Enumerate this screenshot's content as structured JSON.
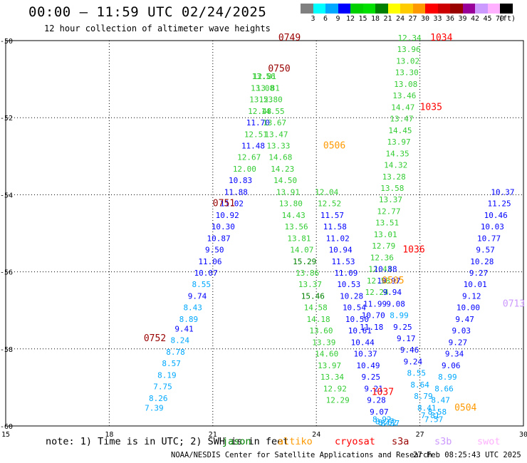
{
  "header": {
    "title": "00:00 — 11:59 UTC 02/24/2025",
    "subtitle": "12 hour collection of altimeter wave heights"
  },
  "colorbar": {
    "labels": [
      "3",
      "6",
      "9",
      "12",
      "15",
      "18",
      "21",
      "24",
      "27",
      "30",
      "33",
      "36",
      "39",
      "42",
      "45",
      "70"
    ],
    "unit": "(ft)",
    "colors": [
      "#808080",
      "#00ffff",
      "#00a8ff",
      "#0000ff",
      "#00d000",
      "#00e000",
      "#008000",
      "#ffff00",
      "#ffcc00",
      "#ff9900",
      "#ff0000",
      "#cc0000",
      "#990000",
      "#990099",
      "#cc99ff",
      "#ffb0ff",
      "#000000"
    ]
  },
  "footer": {
    "note": "note: 1) Time is in UTC; 2) SWH is in feet",
    "satellites": [
      {
        "name": "jason",
        "color": "#008000"
      },
      {
        "name": "altiko",
        "color": "#ff9900"
      },
      {
        "name": "cryosat",
        "color": "#ff0000"
      },
      {
        "name": "s3a",
        "color": "#990000"
      },
      {
        "name": "s3b",
        "color": "#cc99ff"
      },
      {
        "name": "swot",
        "color": "#ffb0ff"
      }
    ],
    "credit": "NOAA/NESDIS Center for Satellite Applications and Research",
    "timestamp": "27 Feb 08:25:43 UTC 2025"
  },
  "chart_data": {
    "type": "scatter",
    "title": "00:00 — 11:59 UTC 02/24/2025",
    "xlim": [
      15,
      30
    ],
    "ylim": [
      -60,
      -50
    ],
    "xticks": [
      "15",
      "18",
      "21",
      "24",
      "27",
      "30"
    ],
    "yticks": [
      "-50",
      "-52",
      "-54",
      "-56",
      "-58",
      "-60"
    ],
    "grid": true,
    "time_labels": [
      {
        "text": "0749",
        "x": 22.9,
        "y": -50.0,
        "color": "#990000"
      },
      {
        "text": "0750",
        "x": 22.6,
        "y": -50.8,
        "color": "#990000"
      },
      {
        "text": "0751",
        "x": 21.0,
        "y": -54.3,
        "color": "#990000"
      },
      {
        "text": "0752",
        "x": 19.0,
        "y": -57.8,
        "color": "#990000"
      },
      {
        "text": "0506",
        "x": 24.2,
        "y": -52.8,
        "color": "#ff9900"
      },
      {
        "text": "0505",
        "x": 25.9,
        "y": -56.3,
        "color": "#ff9900"
      },
      {
        "text": "0504",
        "x": 28.0,
        "y": -59.6,
        "color": "#ff9900"
      },
      {
        "text": "1034",
        "x": 27.3,
        "y": -50.0,
        "color": "#ff0000"
      },
      {
        "text": "1035",
        "x": 27.0,
        "y": -51.8,
        "color": "#ff0000"
      },
      {
        "text": "1036",
        "x": 26.5,
        "y": -55.5,
        "color": "#ff0000"
      },
      {
        "text": "1037",
        "x": 25.6,
        "y": -59.2,
        "color": "#ff0000"
      },
      {
        "text": "0713",
        "x": 29.4,
        "y": -56.9,
        "color": "#cc99ff"
      }
    ],
    "series": [
      {
        "name": "s3a",
        "x": [
          19.3,
          19.42,
          19.55,
          19.67,
          19.8,
          19.92,
          20.05,
          20.17,
          20.3,
          20.42,
          20.55,
          20.67,
          20.8,
          20.92,
          21.05,
          21.17,
          21.3,
          21.42,
          21.55,
          21.67,
          21.8,
          21.92,
          22.05,
          22.17,
          22.25,
          22.31,
          22.36,
          22.4,
          22.44,
          22.47
        ],
        "y": [
          -59.6,
          -59.35,
          -59.05,
          -58.75,
          -58.45,
          -58.15,
          -57.85,
          -57.55,
          -57.3,
          -57.0,
          -56.7,
          -56.4,
          -56.1,
          -55.8,
          -55.5,
          -55.2,
          -54.9,
          -54.6,
          -54.3,
          -54.0,
          -53.7,
          -53.4,
          -53.1,
          -52.8,
          -52.5,
          -52.2,
          -51.9,
          -51.6,
          -51.3,
          -51.0
        ],
        "values": [
          7.39,
          8.26,
          7.75,
          8.19,
          8.57,
          8.78,
          8.24,
          9.41,
          8.89,
          8.43,
          9.74,
          8.55,
          10.07,
          11.06,
          9.5,
          10.87,
          10.3,
          10.92,
          11.02,
          11.88,
          10.83,
          12.0,
          12.67,
          11.48,
          12.51,
          11.7,
          12.48,
          13.53,
          13.08,
          13.56
        ]
      },
      {
        "name": "s3a-north",
        "x": [
          22.5,
          22.6,
          22.68,
          22.74,
          22.79,
          22.84,
          22.9,
          22.96,
          23.02,
          23.1,
          23.18,
          23.26,
          23.34,
          23.42,
          23.5,
          23.58,
          23.66,
          23.74,
          23.82,
          23.9,
          23.98,
          24.06,
          24.14,
          24.22,
          24.3,
          24.38,
          24.46,
          24.54,
          24.62
        ],
        "y": [
          -51.0,
          -51.3,
          -51.6,
          -51.9,
          -52.2,
          -52.5,
          -52.8,
          -53.1,
          -53.4,
          -53.7,
          -54.0,
          -54.3,
          -54.6,
          -54.9,
          -55.2,
          -55.5,
          -55.8,
          -56.1,
          -56.4,
          -56.7,
          -57.0,
          -57.3,
          -57.6,
          -57.9,
          -58.2,
          -58.5,
          -58.8,
          -59.1,
          -59.4
        ],
        "values": [
          12.81,
          13.81,
          12.8,
          14.55,
          13.67,
          13.47,
          13.33,
          14.68,
          14.23,
          14.5,
          13.91,
          13.8,
          14.43,
          13.56,
          13.81,
          14.07,
          15.29,
          13.86,
          13.37,
          15.46,
          14.58,
          14.18,
          13.6,
          13.39,
          14.6,
          13.97,
          13.34,
          12.92,
          12.29
        ]
      },
      {
        "name": "altiko",
        "x": [
          24.3,
          24.38,
          24.46,
          24.54,
          24.62,
          24.7,
          24.78,
          24.86,
          24.94,
          25.02,
          25.1,
          25.18,
          25.26,
          25.34,
          25.42,
          25.5,
          25.58,
          25.66,
          25.74,
          25.82,
          25.9,
          25.98,
          26.06,
          26.14
        ],
        "y": [
          -54.0,
          -54.3,
          -54.6,
          -54.9,
          -55.2,
          -55.5,
          -55.8,
          -56.1,
          -56.4,
          -56.7,
          -57.0,
          -57.3,
          -57.6,
          -57.9,
          -58.2,
          -58.5,
          -58.8,
          -59.1,
          -59.4,
          -59.7,
          -59.9,
          -59.95,
          -59.98,
          -60.0
        ],
        "values": [
          12.04,
          12.52,
          11.57,
          11.58,
          11.02,
          10.94,
          11.53,
          11.09,
          10.53,
          10.28,
          10.54,
          10.5,
          10.61,
          10.44,
          10.37,
          10.49,
          9.25,
          9.21,
          9.28,
          9.07,
          8.92,
          8.27,
          8.62,
          8.37
        ]
      },
      {
        "name": "cryosat",
        "x": [
          26.7,
          26.68,
          26.65,
          26.62,
          26.59,
          26.55,
          26.51,
          26.47,
          26.43,
          26.39,
          26.35,
          26.3,
          26.25,
          26.2,
          26.15,
          26.1,
          26.05,
          26.0,
          25.95,
          25.9,
          25.85,
          25.8,
          25.75,
          25.7,
          25.65,
          25.6
        ],
        "y": [
          -50.0,
          -50.3,
          -50.6,
          -50.9,
          -51.2,
          -51.5,
          -51.8,
          -52.1,
          -52.4,
          -52.7,
          -53.0,
          -53.3,
          -53.6,
          -53.9,
          -54.2,
          -54.5,
          -54.8,
          -55.1,
          -55.4,
          -55.7,
          -56.0,
          -56.3,
          -56.6,
          -56.9,
          -57.2,
          -57.5
        ],
        "values": [
          12.34,
          13.96,
          13.02,
          13.3,
          13.08,
          13.46,
          14.47,
          13.47,
          14.45,
          13.97,
          14.35,
          14.32,
          13.28,
          13.58,
          13.37,
          12.77,
          13.51,
          13.01,
          12.79,
          12.36,
          12.43,
          12.58,
          12.24,
          11.99,
          10.7,
          11.18
        ]
      },
      {
        "name": "s3b",
        "x": [
          26.0,
          26.1,
          26.2,
          26.3,
          26.4,
          26.5,
          26.6,
          26.7,
          26.8,
          26.9,
          27.0,
          27.1,
          27.2,
          27.3,
          27.4,
          27.5,
          27.6,
          27.7,
          27.8,
          27.9,
          28.0,
          28.1,
          28.2,
          28.3,
          28.4,
          28.5,
          28.6,
          28.7,
          28.8,
          28.9,
          29.0,
          29.1,
          29.2,
          29.3,
          29.4
        ],
        "y": [
          -56.0,
          -56.3,
          -56.6,
          -56.9,
          -57.2,
          -57.5,
          -57.8,
          -58.1,
          -58.4,
          -58.7,
          -59.0,
          -59.3,
          -59.6,
          -59.8,
          -59.9,
          -59.7,
          -59.4,
          -59.1,
          -58.8,
          -58.5,
          -58.2,
          -57.9,
          -57.6,
          -57.3,
          -57.0,
          -56.7,
          -56.4,
          -56.1,
          -55.8,
          -55.5,
          -55.2,
          -54.9,
          -54.6,
          -54.3,
          -54.0
        ],
        "values": [
          10.88,
          10.97,
          9.94,
          9.08,
          8.99,
          9.25,
          9.17,
          9.46,
          9.24,
          8.55,
          8.64,
          8.79,
          8.41,
          7.81,
          7.57,
          8.58,
          8.47,
          8.66,
          8.99,
          9.06,
          9.34,
          9.27,
          9.03,
          9.47,
          10.0,
          9.12,
          10.01,
          9.27,
          10.28,
          9.57,
          10.77,
          10.03,
          10.46,
          11.25,
          10.37
        ]
      }
    ]
  }
}
